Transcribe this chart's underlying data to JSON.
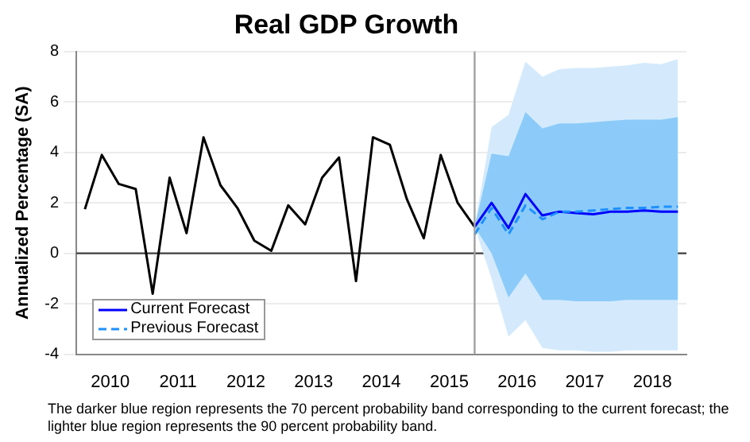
{
  "chart_data": {
    "type": "line",
    "title": "Real GDP Growth",
    "ylabel": "Annualized Percentage (SA)",
    "annotations": [
      "The darker blue region represents the 70 percent probability band corresponding to the current forecast; the lighter blue region represents the 90 percent probability band."
    ],
    "series": [
      {
        "type": "line",
        "color": "#d4eafc",
        "x": [
          2015.875,
          2016.125,
          2016.375,
          2016.625,
          2016.875,
          2017.125,
          2017.375,
          2017.625,
          2017.875,
          2018.125,
          2018.375,
          2018.625,
          2018.875
        ],
        "values": [
          null,
          null,
          null,
          null,
          null,
          null,
          null,
          null,
          null,
          null,
          null,
          null,
          null
        ],
        "upper": [
          1.05,
          5.0,
          5.5,
          7.6,
          7.0,
          7.3,
          7.35,
          7.35,
          7.4,
          7.45,
          7.55,
          7.5,
          7.7
        ],
        "lower": [
          1.05,
          -1.0,
          -3.3,
          -2.65,
          -3.75,
          -3.85,
          -3.85,
          -3.9,
          -3.9,
          -3.85,
          -3.85,
          -3.85,
          -3.85
        ]
      },
      {
        "type": "line",
        "color": "#8ccbf9",
        "x": [
          2015.875,
          2016.125,
          2016.375,
          2016.625,
          2016.875,
          2017.125,
          2017.375,
          2017.625,
          2017.875,
          2018.125,
          2018.375,
          2018.625,
          2018.875
        ],
        "values": [
          null,
          null,
          null,
          null,
          null,
          null,
          null,
          null,
          null,
          null,
          null,
          null,
          null
        ],
        "upper": [
          1.05,
          3.95,
          3.85,
          5.6,
          4.95,
          5.15,
          5.15,
          5.2,
          5.25,
          5.3,
          5.3,
          5.3,
          5.4
        ],
        "lower": [
          1.05,
          0.0,
          -1.75,
          -0.8,
          -1.85,
          -1.85,
          -1.9,
          -1.9,
          -1.9,
          -1.85,
          -1.85,
          -1.85,
          -1.85
        ]
      },
      {
        "type": "line",
        "color": "#000000",
        "x": [
          2010.125,
          2010.375,
          2010.625,
          2010.875,
          2011.125,
          2011.375,
          2011.625,
          2011.875,
          2012.125,
          2012.375,
          2012.625,
          2012.875,
          2013.125,
          2013.375,
          2013.625,
          2013.875,
          2014.125,
          2014.375,
          2014.625,
          2014.875,
          2015.125,
          2015.375,
          2015.625,
          2015.875
        ],
        "values": [
          1.75,
          3.9,
          2.75,
          2.55,
          -1.6,
          3.0,
          0.8,
          4.6,
          2.7,
          1.8,
          0.5,
          0.1,
          1.9,
          1.15,
          3.0,
          3.8,
          -1.1,
          4.6,
          4.3,
          2.15,
          0.6,
          3.9,
          2.0,
          1.05
        ]
      },
      {
        "type": "line",
        "name": "Current Forecast",
        "color": "#0000ff",
        "x": [
          2015.875,
          2016.125,
          2016.375,
          2016.625,
          2016.875,
          2017.125,
          2017.375,
          2017.625,
          2017.875,
          2018.125,
          2018.375,
          2018.625,
          2018.875
        ],
        "values": [
          1.05,
          2.0,
          1.0,
          2.35,
          1.5,
          1.65,
          1.6,
          1.55,
          1.65,
          1.65,
          1.7,
          1.65,
          1.65
        ]
      },
      {
        "type": "line",
        "name": "Previous Forecast",
        "color": "#1e90ff",
        "line_style": "dashed",
        "x": [
          2015.875,
          2016.125,
          2016.375,
          2016.625,
          2016.875,
          2017.125,
          2017.375,
          2017.625,
          2017.875,
          2018.125,
          2018.375,
          2018.625,
          2018.875
        ],
        "values": [
          0.75,
          1.8,
          0.75,
          1.9,
          1.35,
          1.65,
          1.65,
          1.7,
          1.75,
          1.8,
          1.8,
          1.85,
          1.85
        ]
      }
    ],
    "xlim": [
      2010,
      2019
    ],
    "xticks": [
      {
        "value": 2010.5,
        "label": "2010"
      },
      {
        "value": 2011.5,
        "label": "2011"
      },
      {
        "value": 2012.5,
        "label": "2012"
      },
      {
        "value": 2013.5,
        "label": "2013"
      },
      {
        "value": 2014.5,
        "label": "2014"
      },
      {
        "value": 2015.5,
        "label": "2015"
      },
      {
        "value": 2016.5,
        "label": "2016"
      },
      {
        "value": 2017.5,
        "label": "2017"
      },
      {
        "value": 2018.5,
        "label": "2018"
      }
    ],
    "ylim": [
      -4,
      8
    ],
    "yticks": [
      -4,
      -2,
      0,
      2,
      4,
      6,
      8
    ],
    "ref_lines": [
      {
        "axis": "y",
        "value": 0,
        "color": "#404040"
      },
      {
        "axis": "x",
        "value": 2015.875,
        "color": "#a0a0a0"
      }
    ],
    "grid": "y",
    "legend": "bottom left",
    "marker": "none"
  }
}
